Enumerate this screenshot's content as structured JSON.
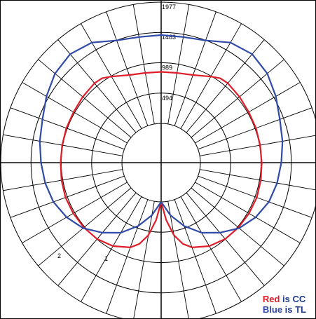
{
  "chart_data": {
    "type": "polar",
    "title": "",
    "radial_ticks": [
      "494",
      "989",
      "1483",
      "1977"
    ],
    "radial_max": 1977,
    "angular_step_deg": 10,
    "series": [
      {
        "name": "CC",
        "color": "#e11d2a",
        "angles_deg": [
          0,
          5,
          10,
          15,
          20,
          30,
          40,
          50,
          60,
          70,
          80,
          90,
          100,
          110,
          120,
          130,
          140,
          145,
          150,
          160,
          170,
          180,
          190,
          200,
          210,
          215,
          220,
          230,
          240,
          250,
          260,
          270,
          280,
          290,
          300,
          310,
          320,
          330,
          340,
          345,
          350,
          355,
          360
        ],
        "values": [
          0,
          300,
          560,
          730,
          830,
          930,
          985,
          1005,
          1015,
          1020,
          1010,
          1000,
          1000,
          1005,
          1010,
          1030,
          1050,
          1040,
          980,
          880,
          845,
          840,
          845,
          880,
          980,
          1040,
          1050,
          1030,
          1010,
          1005,
          1000,
          1000,
          1010,
          1020,
          1015,
          1005,
          985,
          930,
          830,
          730,
          560,
          300,
          0
        ]
      },
      {
        "name": "TL",
        "color": "#2f4aa8",
        "angles_deg": [
          0,
          10,
          20,
          30,
          40,
          50,
          60,
          70,
          80,
          90,
          100,
          110,
          120,
          130,
          140,
          150,
          160,
          170,
          180,
          190,
          200,
          210,
          220,
          230,
          240,
          250,
          260,
          270,
          280,
          290,
          300,
          310,
          320,
          330,
          340,
          350,
          360
        ],
        "values": [
          0,
          230,
          460,
          680,
          850,
          1020,
          1140,
          1230,
          1280,
          1320,
          1370,
          1420,
          1520,
          1620,
          1670,
          1620,
          1480,
          1440,
          1440,
          1440,
          1480,
          1620,
          1670,
          1620,
          1520,
          1420,
          1370,
          1320,
          1280,
          1230,
          1140,
          1020,
          850,
          680,
          460,
          230,
          0
        ]
      }
    ],
    "legend": [
      {
        "color_word": "Red",
        "series": "CC"
      },
      {
        "color_word": "Blue",
        "series": "TL"
      }
    ],
    "legend_placement": "bottom-right",
    "stray_labels": [
      "2",
      "1"
    ]
  },
  "legend": {
    "red_word": "Red",
    "red_rest": " is CC",
    "blue_word": "Blue",
    "blue_rest": " is TL"
  }
}
